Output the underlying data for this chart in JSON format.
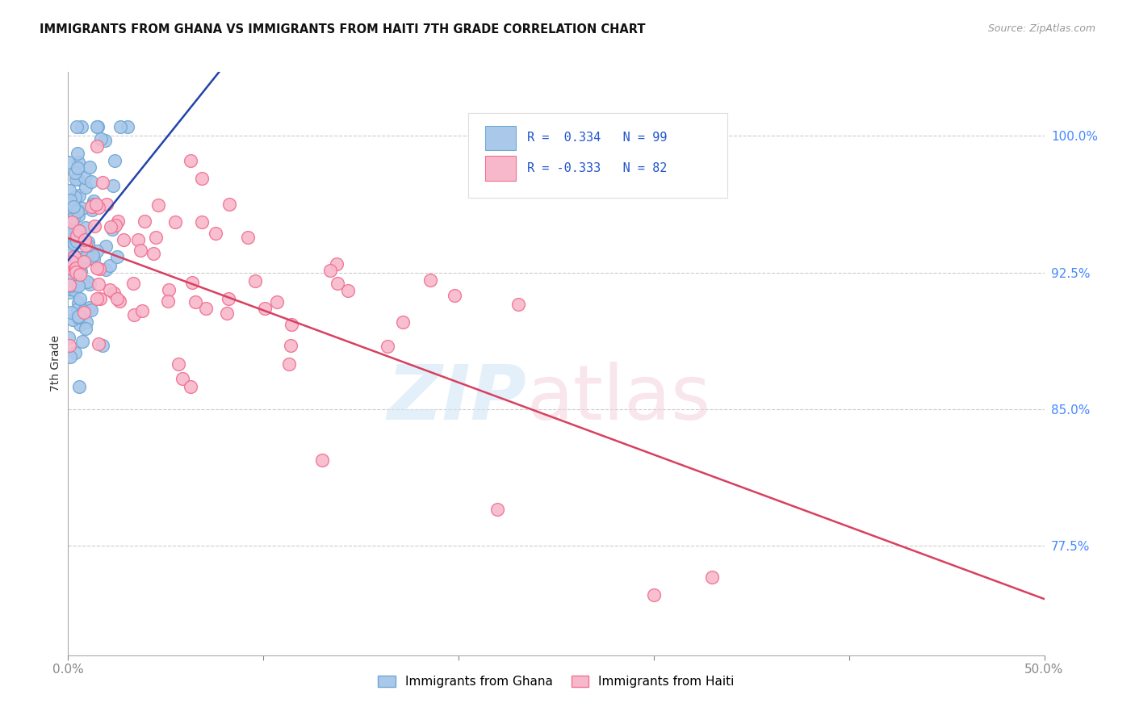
{
  "title": "IMMIGRANTS FROM GHANA VS IMMIGRANTS FROM HAITI 7TH GRADE CORRELATION CHART",
  "source": "Source: ZipAtlas.com",
  "ylabel": "7th Grade",
  "ytick_labels": [
    "77.5%",
    "85.0%",
    "92.5%",
    "100.0%"
  ],
  "ytick_values": [
    0.775,
    0.85,
    0.925,
    1.0
  ],
  "xlim": [
    0.0,
    0.5
  ],
  "ylim": [
    0.715,
    1.035
  ],
  "legend_ghana": "Immigrants from Ghana",
  "legend_haiti": "Immigrants from Haiti",
  "R_ghana": 0.334,
  "N_ghana": 99,
  "R_haiti": -0.333,
  "N_haiti": 82,
  "ghana_color": "#aac8ea",
  "ghana_edge": "#6fa8d4",
  "haiti_color": "#f8b8cc",
  "haiti_edge": "#f07090",
  "ghana_line_color": "#2244aa",
  "haiti_line_color": "#d84060",
  "grid_color": "#cccccc",
  "spine_color": "#aaaaaa"
}
